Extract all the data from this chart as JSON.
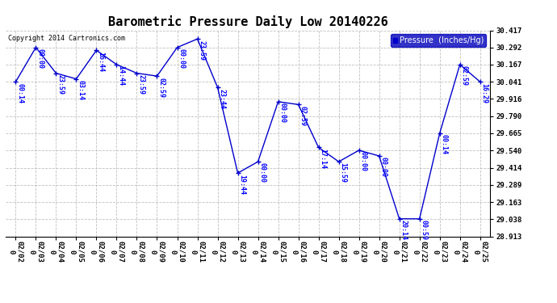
{
  "title": "Barometric Pressure Daily Low 20140226",
  "copyright": "Copyright 2014 Cartronics.com",
  "legend_label": "Pressure  (Inches/Hg)",
  "background_color": "#ffffff",
  "line_color": "#0000cc",
  "label_color": "#0000ff",
  "grid_color": "#b0b0b0",
  "dates": [
    "02/02",
    "02/03",
    "02/04",
    "02/05",
    "02/06",
    "02/07",
    "02/08",
    "02/09",
    "02/10",
    "02/11",
    "02/12",
    "02/13",
    "02/14",
    "02/15",
    "02/16",
    "02/17",
    "02/18",
    "02/19",
    "02/20",
    "02/21",
    "02/22",
    "02/23",
    "02/24",
    "02/25"
  ],
  "values": [
    30.041,
    30.292,
    30.104,
    30.062,
    30.271,
    30.167,
    30.104,
    30.083,
    30.292,
    30.354,
    30.0,
    29.375,
    29.458,
    29.896,
    29.875,
    29.562,
    29.458,
    29.541,
    29.5,
    29.041,
    29.041,
    29.665,
    30.167,
    30.041
  ],
  "time_labels": [
    "00:14",
    "00:00",
    "23:59",
    "03:14",
    "16:44",
    "14:44",
    "23:59",
    "02:59",
    "00:00",
    "23:59",
    "23:44",
    "19:44",
    "00:00",
    "00:00",
    "02:59",
    "17:14",
    "15:59",
    "00:00",
    "00:00",
    "20:14",
    "00:59",
    "00:14",
    "02:59",
    "16:29"
  ],
  "ylim_min": 28.913,
  "ylim_max": 30.417,
  "yticks": [
    28.913,
    29.038,
    29.163,
    29.289,
    29.414,
    29.54,
    29.665,
    29.79,
    29.916,
    30.041,
    30.167,
    30.292,
    30.417
  ],
  "title_fontsize": 11,
  "label_fontsize": 6,
  "tick_fontsize": 6.5,
  "copyright_fontsize": 6,
  "legend_fontsize": 7
}
